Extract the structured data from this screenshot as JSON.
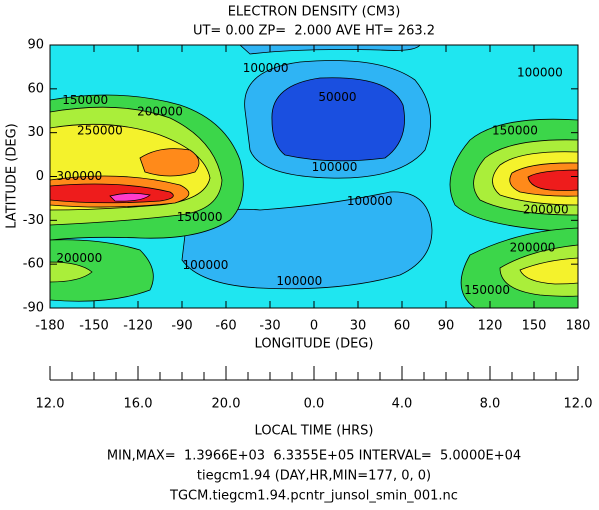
{
  "chart_data": {
    "type": "contour",
    "title": "ELECTRON DENSITY (CM3)",
    "subtitle": "UT= 0.00 ZP=  2.000 AVE HT= 263.2",
    "x_label": "LONGITUDE (DEG)",
    "y_label": "LATITUDE (DEG)",
    "xlim": [
      -180,
      180
    ],
    "xticks": [
      -180,
      -150,
      -120,
      -90,
      -60,
      -30,
      0,
      30,
      60,
      90,
      120,
      150,
      180
    ],
    "ylim": [
      -90,
      90
    ],
    "yticks": [
      -90,
      -60,
      -30,
      0,
      30,
      60,
      90
    ],
    "local_time_label": "LOCAL TIME (HRS)",
    "local_time_categories": [
      "12.0",
      "16.0",
      "20.0",
      "0.0",
      "4.0",
      "8.0",
      "12.0"
    ],
    "levels": [
      {
        "value": 0,
        "color": "#1a4fe0"
      },
      {
        "value": 50000,
        "color": "#2fb4f4"
      },
      {
        "value": 100000,
        "color": "#1fe6f0"
      },
      {
        "value": 150000,
        "color": "#3cd64a"
      },
      {
        "value": 200000,
        "color": "#aaee3a"
      },
      {
        "value": 250000,
        "color": "#f4f22c"
      },
      {
        "value": 300000,
        "color": "#ff8a1a"
      },
      {
        "value": 350000,
        "color": "#ee1c1c"
      },
      {
        "value": 400000,
        "color": "#ff3ccc"
      }
    ],
    "contour_labels": [
      {
        "value": 100000,
        "x": -33,
        "y": 74
      },
      {
        "value": 100000,
        "x": 154,
        "y": 71
      },
      {
        "value": 150000,
        "x": -156,
        "y": 52
      },
      {
        "value": 200000,
        "x": -105,
        "y": 44
      },
      {
        "value": 50000,
        "x": 16,
        "y": 54
      },
      {
        "value": 150000,
        "x": 137,
        "y": 31
      },
      {
        "value": 250000,
        "x": -146,
        "y": 31
      },
      {
        "value": 100000,
        "x": 14,
        "y": 6
      },
      {
        "value": 300000,
        "x": -160,
        "y": 0
      },
      {
        "value": 200000,
        "x": 158,
        "y": -23
      },
      {
        "value": 150000,
        "x": -78,
        "y": -28
      },
      {
        "value": 100000,
        "x": 38,
        "y": -17
      },
      {
        "value": 200000,
        "x": 149,
        "y": -49
      },
      {
        "value": 200000,
        "x": -160,
        "y": -56
      },
      {
        "value": 100000,
        "x": -74,
        "y": -61
      },
      {
        "value": 100000,
        "x": -10,
        "y": -72
      },
      {
        "value": 150000,
        "x": 118,
        "y": -78
      }
    ],
    "footer": [
      "MIN,MAX=  1.3966E+03  6.3355E+05 INTERVAL=  5.0000E+04",
      "tiegcm1.94 (DAY,HR,MIN=177, 0, 0)",
      "TGCM.tiegcm1.94.pcntr_junsol_smin_001.nc"
    ]
  }
}
